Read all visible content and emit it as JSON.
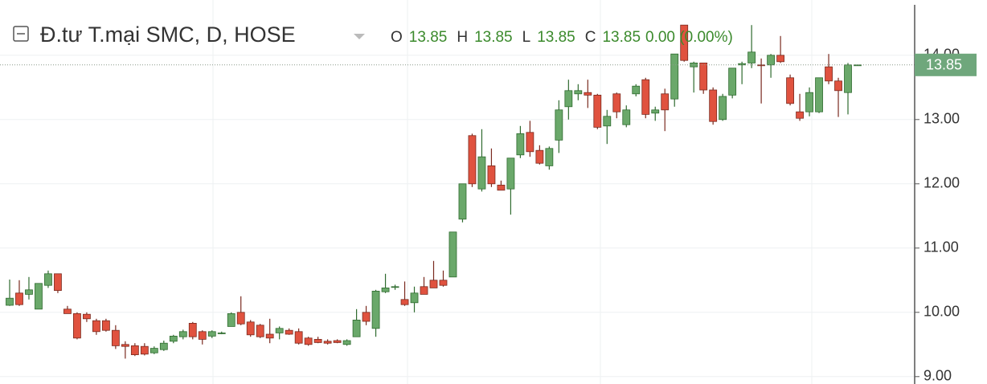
{
  "chart_data": {
    "type": "candlestick",
    "title": "Đ.tư T.mại SMC, D, HOSE",
    "ohlc_legend": [
      {
        "label": "O",
        "value": 13.85
      },
      {
        "label": "H",
        "value": 13.85
      },
      {
        "label": "L",
        "value": 13.85
      },
      {
        "label": "C",
        "value": 13.85
      }
    ],
    "change_label": "0.00 (0.00%)",
    "last_price": 13.85,
    "up_color": "#6aa86a",
    "down_color": "#e0523f",
    "ylim": [
      8.86,
      14.86
    ],
    "yticks": [
      {
        "value": 9,
        "label": "9.00"
      },
      {
        "value": 10,
        "label": "10.00"
      },
      {
        "value": 11,
        "label": "11.00"
      },
      {
        "value": 12,
        "label": "12.00"
      },
      {
        "value": 13,
        "label": "13.00"
      },
      {
        "value": 14,
        "label": "14.00"
      }
    ],
    "grid": true,
    "open": [
      10.11,
      10.3,
      10.28,
      10.05,
      10.42,
      10.6,
      10.05,
      9.98,
      9.97,
      9.87,
      9.87,
      9.72,
      9.5,
      9.48,
      9.47,
      9.37,
      9.42,
      9.55,
      9.62,
      9.83,
      9.7,
      9.63,
      9.68,
      9.78,
      10.0,
      9.85,
      9.8,
      9.66,
      9.68,
      9.72,
      9.7,
      9.6,
      9.58,
      9.55,
      9.56,
      9.5,
      9.62,
      10.0,
      9.75,
      10.32,
      10.4,
      10.2,
      10.15,
      10.4,
      10.5,
      10.5,
      10.55,
      11.45,
      12.75,
      11.92,
      12.28,
      11.98,
      11.92,
      12.45,
      12.8,
      12.52,
      12.28,
      12.68,
      13.2,
      13.4,
      13.42,
      13.38,
      12.9,
      13.4,
      12.92,
      13.4,
      13.62,
      13.1,
      13.4,
      13.32,
      14.47,
      13.82,
      13.88,
      13.46,
      13.0,
      13.38,
      13.85,
      13.88,
      13.85,
      13.85,
      14.0,
      13.65,
      13.12,
      13.12,
      13.12,
      13.82,
      13.6,
      13.42,
      13.85
    ],
    "high": [
      10.51,
      10.5,
      10.55,
      10.45,
      10.65,
      10.6,
      10.1,
      10.0,
      10.0,
      9.9,
      9.9,
      9.8,
      9.55,
      9.52,
      9.52,
      9.47,
      9.56,
      9.65,
      9.73,
      9.85,
      9.72,
      9.72,
      9.7,
      10.0,
      10.25,
      9.88,
      9.82,
      9.9,
      9.78,
      9.75,
      9.75,
      9.62,
      9.62,
      9.58,
      9.58,
      9.58,
      10.05,
      10.1,
      10.35,
      10.6,
      10.43,
      10.48,
      10.4,
      10.55,
      10.8,
      10.65,
      11.25,
      12.0,
      12.78,
      12.85,
      12.55,
      12.05,
      12.4,
      12.9,
      12.98,
      12.6,
      12.58,
      13.3,
      13.62,
      13.55,
      13.62,
      13.4,
      13.15,
      13.42,
      13.22,
      13.55,
      13.65,
      13.2,
      13.48,
      14.02,
      14.47,
      13.9,
      13.88,
      13.5,
      13.4,
      13.8,
      13.9,
      14.47,
      13.95,
      14.02,
      14.3,
      13.7,
      13.4,
      13.5,
      13.65,
      14.02,
      13.65,
      13.88,
      13.85
    ],
    "low": [
      10.1,
      10.1,
      10.2,
      10.05,
      10.38,
      10.3,
      9.98,
      9.58,
      9.85,
      9.65,
      9.7,
      9.43,
      9.28,
      9.32,
      9.33,
      9.35,
      9.4,
      9.52,
      9.58,
      9.58,
      9.5,
      9.6,
      9.66,
      9.78,
      9.8,
      9.62,
      9.6,
      9.52,
      9.58,
      9.65,
      9.5,
      9.48,
      9.52,
      9.5,
      9.52,
      9.48,
      9.62,
      9.8,
      9.62,
      10.3,
      10.35,
      10.1,
      10.0,
      10.28,
      10.38,
      10.4,
      10.55,
      11.4,
      11.95,
      11.88,
      11.95,
      11.9,
      11.52,
      12.4,
      12.42,
      12.3,
      12.22,
      12.48,
      13.0,
      13.3,
      13.18,
      12.85,
      12.62,
      13.02,
      12.88,
      13.36,
      13.02,
      12.98,
      12.82,
      13.2,
      13.9,
      13.42,
      13.4,
      12.92,
      12.98,
      13.33,
      13.55,
      13.8,
      13.25,
      13.65,
      13.88,
      13.22,
      12.98,
      13.05,
      13.1,
      13.55,
      13.04,
      13.08,
      13.85
    ],
    "close": [
      10.22,
      10.12,
      10.35,
      10.45,
      10.6,
      10.34,
      9.98,
      9.6,
      9.9,
      9.7,
      9.72,
      9.48,
      9.47,
      9.34,
      9.35,
      9.44,
      9.52,
      9.63,
      9.7,
      9.62,
      9.58,
      9.7,
      9.68,
      9.98,
      9.82,
      9.65,
      9.62,
      9.6,
      9.75,
      9.66,
      9.52,
      9.5,
      9.53,
      9.52,
      9.53,
      9.56,
      9.88,
      9.86,
      10.33,
      10.38,
      10.4,
      10.12,
      10.3,
      10.28,
      10.38,
      10.42,
      11.25,
      12.0,
      12.0,
      12.42,
      12.0,
      11.9,
      12.4,
      12.78,
      12.5,
      12.32,
      12.55,
      13.15,
      13.45,
      13.45,
      13.38,
      12.88,
      13.05,
      13.12,
      13.15,
      13.52,
      13.08,
      13.15,
      13.15,
      14.02,
      13.92,
      13.88,
      13.46,
      12.97,
      13.36,
      13.8,
      13.87,
      14.05,
      13.84,
      14.0,
      13.9,
      13.25,
      13.02,
      13.42,
      13.65,
      13.6,
      13.45,
      13.85,
      13.85
    ]
  }
}
